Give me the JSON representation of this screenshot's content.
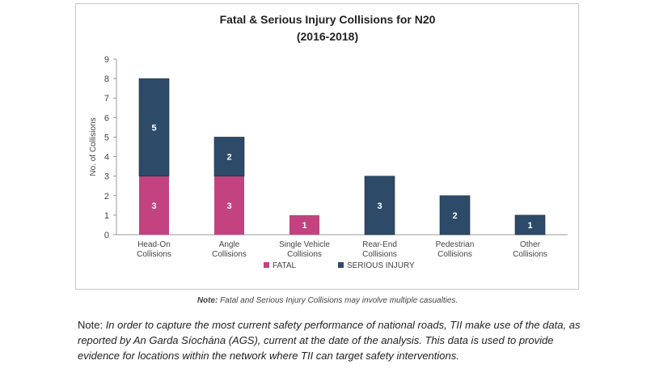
{
  "chart_data": {
    "type": "bar",
    "stacked": true,
    "title": "Fatal & Serious Injury Collisions for N20",
    "subtitle": "(2016-2018)",
    "ylabel": "No. of Collisions",
    "xlabel": "",
    "ylim": [
      0,
      9
    ],
    "yticks": [
      0,
      1,
      2,
      3,
      4,
      5,
      6,
      7,
      8,
      9
    ],
    "categories": [
      [
        "Head-On",
        "Collisions"
      ],
      [
        "Angle",
        "Collisions"
      ],
      [
        "Single Vehicle",
        "Collisions"
      ],
      [
        "Rear-End",
        "Collisions"
      ],
      [
        "Pedestrian",
        "Collisions"
      ],
      [
        "Other",
        "Collisions"
      ]
    ],
    "series": [
      {
        "name": "FATAL",
        "color": "#c2437f",
        "values": [
          3,
          3,
          1,
          0,
          0,
          0
        ]
      },
      {
        "name": "SERIOUS INJURY",
        "color": "#2d4a69",
        "values": [
          5,
          2,
          0,
          3,
          2,
          1
        ]
      }
    ],
    "grid": false,
    "legend_position": "bottom"
  },
  "caption": {
    "label": "Note:",
    "text": " Fatal and Serious Injury Collisions may involve multiple casualties."
  },
  "note": {
    "label": "Note: ",
    "text": "In order to capture the most current safety performance of national roads, TII make use of the data, as reported by An Garda Síochána (AGS), current at the date of the analysis. This data is used to provide evidence for locations within the network where TII can target safety interventions."
  }
}
